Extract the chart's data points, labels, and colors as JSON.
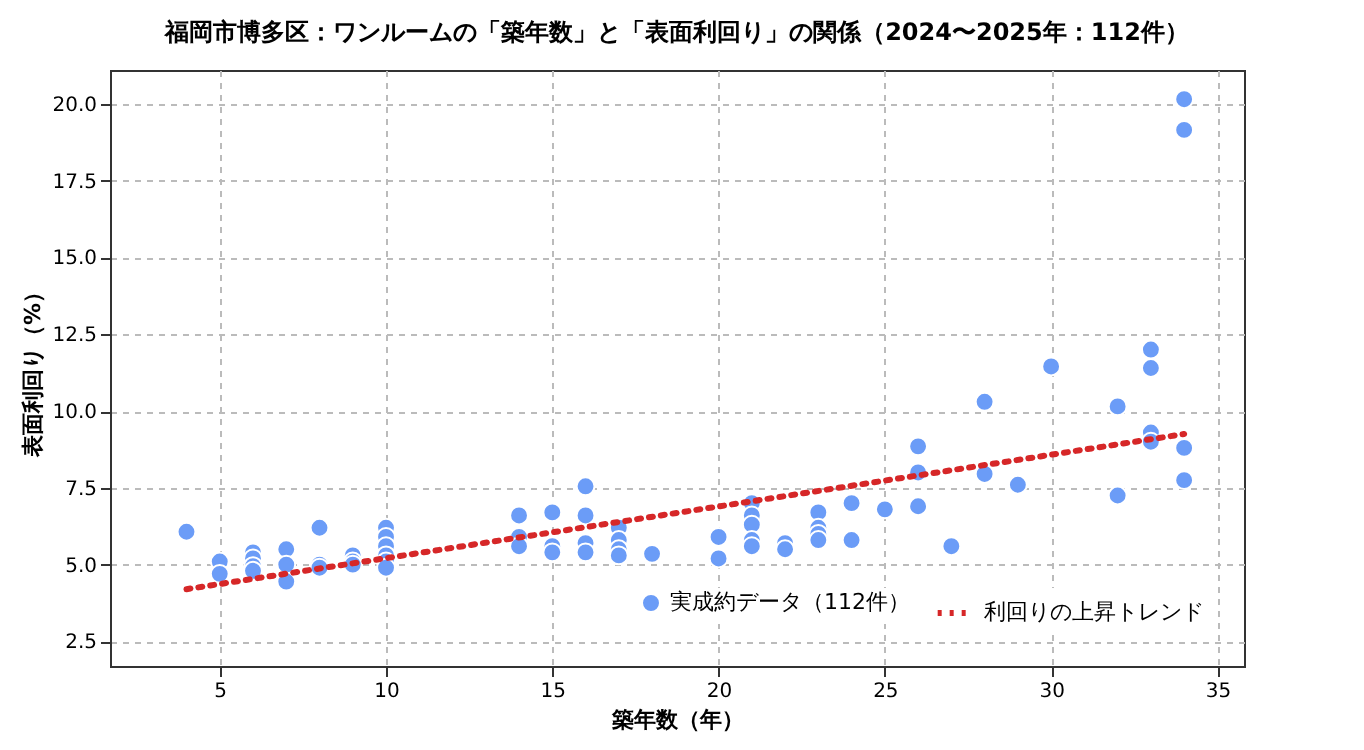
{
  "chart_data": {
    "type": "scatter",
    "title": "福岡市博多区：ワンルームの「築年数」と「表面利回り」の関係（2024〜2025年：112件）",
    "xlabel": "築年数（年）",
    "ylabel": "表面利回り（%）",
    "xlim": [
      1.7,
      35.8
    ],
    "ylim": [
      1.7,
      21.1
    ],
    "xticks": [
      5,
      10,
      15,
      20,
      25,
      30,
      35
    ],
    "yticks": [
      {
        "value": 2.5,
        "label": "2.5"
      },
      {
        "value": 5,
        "label": "5.0"
      },
      {
        "value": 7.5,
        "label": "7.5"
      },
      {
        "value": 10,
        "label": "10.0"
      },
      {
        "value": 12.5,
        "label": "12.5"
      },
      {
        "value": 15,
        "label": "15.0"
      },
      {
        "value": 17.5,
        "label": "17.5"
      },
      {
        "value": 20,
        "label": "20.0"
      }
    ],
    "grid": true,
    "legend": "bottom right",
    "series": [
      {
        "name": "実成約データ（112件）",
        "marker": "circle",
        "color": "#6b9cf7",
        "x": [
          4,
          5,
          5,
          6,
          6,
          6,
          6,
          7,
          7,
          7,
          8,
          8,
          8,
          9,
          9,
          9,
          10,
          10,
          10,
          10,
          10,
          10,
          14,
          14,
          14,
          15,
          15,
          15,
          16,
          16,
          16,
          16,
          17,
          17,
          17,
          17,
          18,
          20,
          20,
          21,
          21,
          21,
          21,
          21,
          22,
          22,
          23,
          23,
          23,
          23,
          24,
          24,
          25,
          26,
          26,
          26,
          27,
          28,
          28,
          29,
          30,
          32,
          32,
          33,
          33,
          33,
          33,
          34,
          34,
          34,
          34
        ],
        "values": [
          6.07,
          5.1,
          4.7,
          5.4,
          5.2,
          4.95,
          4.8,
          5.5,
          5.0,
          4.45,
          6.2,
          5.0,
          4.9,
          5.3,
          5.1,
          5.0,
          6.2,
          5.9,
          5.6,
          5.3,
          5.1,
          4.9,
          6.6,
          5.9,
          5.6,
          6.7,
          5.6,
          5.4,
          7.55,
          6.6,
          5.7,
          5.4,
          6.2,
          5.8,
          5.5,
          5.3,
          5.35,
          5.9,
          5.2,
          7.0,
          6.6,
          6.3,
          5.8,
          5.6,
          5.7,
          5.5,
          6.7,
          6.2,
          6.0,
          5.8,
          7.0,
          5.8,
          6.8,
          8.85,
          8.0,
          6.9,
          5.6,
          10.3,
          7.95,
          7.6,
          11.45,
          10.15,
          7.25,
          12.0,
          11.4,
          9.3,
          9.0,
          20.15,
          19.15,
          8.8,
          7.75
        ]
      },
      {
        "name": "利回りの上昇トレンド",
        "type": "line",
        "color": "#d62728",
        "line_style": "dotted",
        "marker": "none",
        "x": [
          4,
          34
        ],
        "values": [
          4.2,
          9.25
        ]
      }
    ]
  }
}
